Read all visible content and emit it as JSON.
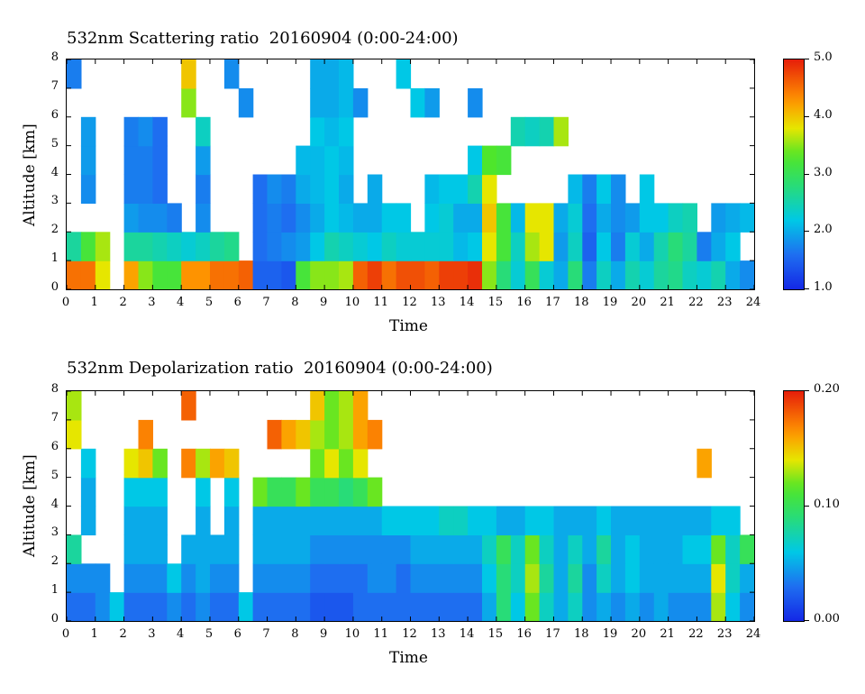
{
  "charts": [
    {
      "title": "532nm Scattering ratio  20160904 (0:00-24:00)",
      "xlabel": "Time",
      "ylabel": "Altitude [km]",
      "colorbar_ticks": [
        "5.0",
        "4.0",
        "3.0",
        "2.0",
        "1.0"
      ]
    },
    {
      "title": "532nm Depolarization ratio  20160904 (0:00-24:00)",
      "xlabel": "Time",
      "ylabel": "Altitude [km]",
      "colorbar_ticks": [
        "0.20",
        "0.10",
        "0.00"
      ]
    }
  ],
  "chart_data": [
    {
      "type": "heatmap",
      "title": "532nm Scattering ratio  20160904 (0:00-24:00)",
      "xlabel": "Time",
      "ylabel": "Altitude [km]",
      "xlim": [
        0,
        24
      ],
      "ylim": [
        0,
        8
      ],
      "x_ticks": [
        0,
        1,
        2,
        3,
        4,
        5,
        6,
        7,
        8,
        9,
        10,
        11,
        12,
        13,
        14,
        15,
        16,
        17,
        18,
        19,
        20,
        21,
        22,
        23,
        24
      ],
      "y_ticks": [
        0,
        1,
        2,
        3,
        4,
        5,
        6,
        7,
        8
      ],
      "colorbar": {
        "min": 1.0,
        "max": 5.0,
        "ticks": [
          1.0,
          2.0,
          3.0,
          4.0,
          5.0
        ],
        "colormap": "rainbow (blue-cyan-green-yellow-orange-red)"
      },
      "x": [
        0.25,
        0.75,
        1.25,
        1.75,
        2.25,
        2.75,
        3.25,
        3.75,
        4.25,
        4.75,
        5.25,
        5.75,
        6.25,
        6.75,
        7.25,
        7.75,
        8.25,
        8.75,
        9.25,
        9.75,
        10.25,
        10.75,
        11.25,
        11.75,
        12.25,
        12.75,
        13.25,
        13.75,
        14.25,
        14.75,
        15.25,
        15.75,
        16.25,
        16.75,
        17.25,
        17.75,
        18.25,
        18.75,
        19.25,
        19.75,
        20.25,
        20.75,
        21.25,
        21.75,
        22.25,
        22.75,
        23.25,
        23.75
      ],
      "y": [
        0.5,
        1.5,
        2.5,
        3.5,
        4.5,
        5.5,
        6.5,
        7.5
      ],
      "z": [
        [
          4.5,
          4.5,
          3.8,
          null,
          4.2,
          3.5,
          3.2,
          3.2,
          4.3,
          4.3,
          4.5,
          4.5,
          4.6,
          1.5,
          1.5,
          1.4,
          3.2,
          3.5,
          3.5,
          3.6,
          4.6,
          4.8,
          4.5,
          4.7,
          4.7,
          4.6,
          4.8,
          4.8,
          4.9,
          3.5,
          2.8,
          2.3,
          3.0,
          2.3,
          2.0,
          2.8,
          1.7,
          2.4,
          2.0,
          2.5,
          2.3,
          2.6,
          2.7,
          2.4,
          2.3,
          2.5,
          2.0,
          1.8
        ],
        [
          2.6,
          3.2,
          3.6,
          null,
          2.6,
          2.6,
          2.5,
          2.4,
          2.3,
          2.4,
          2.6,
          2.7,
          null,
          1.6,
          1.7,
          1.8,
          1.9,
          2.2,
          2.5,
          2.4,
          2.3,
          2.2,
          2.4,
          2.3,
          2.3,
          2.3,
          2.3,
          2.1,
          2.2,
          3.8,
          3.2,
          2.4,
          3.6,
          3.8,
          1.9,
          2.4,
          1.5,
          2.2,
          1.7,
          2.3,
          2.0,
          2.5,
          2.8,
          2.6,
          1.7,
          2.0,
          2.2,
          null
        ],
        [
          null,
          null,
          null,
          null,
          1.9,
          1.8,
          1.8,
          1.7,
          null,
          1.8,
          null,
          null,
          null,
          1.6,
          1.7,
          1.6,
          1.8,
          2.0,
          2.2,
          2.1,
          2.0,
          2.0,
          2.2,
          2.2,
          null,
          2.2,
          2.3,
          2.0,
          2.0,
          4.0,
          3.2,
          2.1,
          3.8,
          3.8,
          2.0,
          2.3,
          1.6,
          2.0,
          1.8,
          1.9,
          2.2,
          2.2,
          2.4,
          2.5,
          null,
          1.9,
          2.0,
          2.1
        ],
        [
          null,
          1.8,
          null,
          null,
          1.7,
          1.7,
          1.6,
          null,
          null,
          1.7,
          null,
          null,
          null,
          1.6,
          1.8,
          1.7,
          2.0,
          2.1,
          2.2,
          2.0,
          null,
          2.0,
          null,
          null,
          null,
          2.1,
          2.2,
          2.2,
          2.5,
          3.8,
          null,
          null,
          null,
          null,
          null,
          2.1,
          1.7,
          2.2,
          1.8,
          null,
          2.2,
          null,
          null,
          null,
          null,
          null,
          null,
          null
        ],
        [
          null,
          1.9,
          null,
          null,
          1.7,
          1.7,
          1.6,
          null,
          null,
          1.9,
          null,
          null,
          null,
          null,
          null,
          null,
          2.1,
          2.1,
          2.2,
          2.1,
          null,
          null,
          null,
          null,
          null,
          null,
          null,
          null,
          2.2,
          3.3,
          3.2,
          null,
          null,
          null,
          null,
          null,
          null,
          null,
          null,
          null,
          null,
          null,
          null,
          null,
          null,
          null,
          null,
          null
        ],
        [
          null,
          1.9,
          null,
          null,
          1.7,
          1.8,
          1.6,
          null,
          null,
          2.4,
          null,
          null,
          null,
          null,
          null,
          null,
          null,
          2.2,
          2.1,
          2.2,
          null,
          null,
          null,
          null,
          null,
          null,
          null,
          null,
          null,
          null,
          null,
          2.5,
          2.4,
          2.5,
          3.6,
          null,
          null,
          null,
          null,
          null,
          null,
          null,
          null,
          null,
          null,
          null,
          null,
          null
        ],
        [
          null,
          null,
          null,
          null,
          null,
          null,
          null,
          null,
          3.5,
          null,
          null,
          null,
          1.8,
          null,
          null,
          null,
          null,
          2.0,
          2.0,
          2.1,
          1.8,
          null,
          null,
          null,
          2.2,
          1.9,
          null,
          null,
          1.8,
          null,
          null,
          null,
          null,
          null,
          null,
          null,
          null,
          null,
          null,
          null,
          null,
          null,
          null,
          null,
          null,
          null,
          null,
          null
        ],
        [
          1.7,
          null,
          null,
          null,
          null,
          null,
          null,
          null,
          4.0,
          null,
          null,
          1.8,
          null,
          null,
          null,
          null,
          null,
          2.0,
          2.0,
          2.1,
          null,
          null,
          null,
          2.2,
          null,
          null,
          null,
          null,
          null,
          null,
          null,
          null,
          null,
          null,
          null,
          null,
          null,
          null,
          null,
          null,
          null,
          null,
          null,
          null,
          null,
          null,
          null,
          null
        ]
      ]
    },
    {
      "type": "heatmap",
      "title": "532nm Depolarization ratio  20160904 (0:00-24:00)",
      "xlabel": "Time",
      "ylabel": "Altitude [km]",
      "xlim": [
        0,
        24
      ],
      "ylim": [
        0,
        8
      ],
      "x_ticks": [
        0,
        1,
        2,
        3,
        4,
        5,
        6,
        7,
        8,
        9,
        10,
        11,
        12,
        13,
        14,
        15,
        16,
        17,
        18,
        19,
        20,
        21,
        22,
        23,
        24
      ],
      "y_ticks": [
        0,
        1,
        2,
        3,
        4,
        5,
        6,
        7,
        8
      ],
      "colorbar": {
        "min": 0.0,
        "max": 0.2,
        "ticks": [
          0.0,
          0.1,
          0.2
        ],
        "colormap": "rainbow (blue-cyan-green-yellow-orange-red)"
      },
      "x": [
        0.25,
        0.75,
        1.25,
        1.75,
        2.25,
        2.75,
        3.25,
        3.75,
        4.25,
        4.75,
        5.25,
        5.75,
        6.25,
        6.75,
        7.25,
        7.75,
        8.25,
        8.75,
        9.25,
        9.75,
        10.25,
        10.75,
        11.25,
        11.75,
        12.25,
        12.75,
        13.25,
        13.75,
        14.25,
        14.75,
        15.25,
        15.75,
        16.25,
        16.75,
        17.25,
        17.75,
        18.25,
        18.75,
        19.25,
        19.75,
        20.25,
        20.75,
        21.25,
        21.75,
        22.25,
        22.75,
        23.25,
        23.75
      ],
      "y": [
        0.5,
        1.5,
        2.5,
        3.5,
        4.5,
        5.5,
        6.5,
        7.5
      ],
      "z": [
        [
          0.03,
          0.03,
          0.04,
          0.06,
          0.03,
          0.03,
          0.03,
          0.04,
          0.03,
          0.04,
          0.03,
          0.03,
          0.06,
          0.03,
          0.03,
          0.03,
          0.03,
          0.02,
          0.02,
          0.02,
          0.03,
          0.03,
          0.03,
          0.03,
          0.03,
          0.03,
          0.03,
          0.03,
          0.03,
          0.05,
          0.09,
          0.06,
          0.12,
          0.07,
          0.05,
          0.07,
          0.04,
          0.05,
          0.04,
          0.05,
          0.04,
          0.05,
          0.04,
          0.04,
          0.04,
          0.13,
          0.06,
          0.04
        ],
        [
          0.04,
          0.04,
          0.04,
          null,
          0.04,
          0.04,
          0.04,
          0.06,
          0.04,
          0.05,
          0.04,
          0.04,
          null,
          0.04,
          0.04,
          0.04,
          0.04,
          0.03,
          0.03,
          0.03,
          0.03,
          0.04,
          0.04,
          0.03,
          0.04,
          0.04,
          0.04,
          0.04,
          0.04,
          0.06,
          0.09,
          0.07,
          0.13,
          0.08,
          0.05,
          0.08,
          0.04,
          0.07,
          0.05,
          0.06,
          0.05,
          0.05,
          0.05,
          0.05,
          0.05,
          0.14,
          0.07,
          0.05
        ],
        [
          0.08,
          null,
          null,
          null,
          0.05,
          0.05,
          0.05,
          null,
          0.05,
          0.05,
          0.05,
          0.05,
          null,
          0.05,
          0.05,
          0.05,
          0.05,
          0.04,
          0.04,
          0.04,
          0.04,
          0.04,
          0.04,
          0.04,
          0.05,
          0.05,
          0.05,
          0.05,
          0.05,
          0.07,
          0.1,
          0.07,
          0.12,
          0.07,
          0.05,
          0.07,
          0.05,
          0.08,
          0.05,
          0.06,
          0.05,
          0.05,
          0.05,
          0.06,
          0.06,
          0.12,
          0.07,
          0.1
        ],
        [
          null,
          0.05,
          null,
          null,
          0.05,
          0.05,
          0.05,
          null,
          null,
          0.05,
          null,
          0.05,
          null,
          0.05,
          0.05,
          0.05,
          0.05,
          0.05,
          0.05,
          0.05,
          0.05,
          0.05,
          0.06,
          0.06,
          0.06,
          0.06,
          0.07,
          0.07,
          0.06,
          0.06,
          0.05,
          0.05,
          0.06,
          0.06,
          0.05,
          0.05,
          0.05,
          0.06,
          0.05,
          0.05,
          0.05,
          0.05,
          0.05,
          0.05,
          0.05,
          0.06,
          0.06,
          null
        ],
        [
          null,
          0.05,
          null,
          null,
          0.06,
          0.06,
          0.06,
          null,
          null,
          0.06,
          null,
          0.06,
          null,
          0.12,
          0.1,
          0.1,
          0.12,
          0.1,
          0.1,
          0.09,
          0.1,
          0.12,
          null,
          null,
          null,
          null,
          null,
          null,
          null,
          null,
          null,
          null,
          null,
          null,
          null,
          null,
          null,
          null,
          null,
          null,
          null,
          null,
          null,
          null,
          null,
          null,
          null,
          null
        ],
        [
          null,
          0.06,
          null,
          null,
          0.14,
          0.15,
          0.12,
          null,
          0.17,
          0.13,
          0.16,
          0.15,
          null,
          null,
          null,
          null,
          null,
          0.12,
          0.14,
          0.12,
          0.14,
          null,
          null,
          null,
          null,
          null,
          null,
          null,
          null,
          null,
          null,
          null,
          null,
          null,
          null,
          null,
          null,
          null,
          null,
          null,
          null,
          null,
          null,
          null,
          0.16,
          null,
          null,
          null
        ],
        [
          0.14,
          null,
          null,
          null,
          null,
          0.17,
          null,
          null,
          null,
          null,
          null,
          null,
          null,
          null,
          0.18,
          0.16,
          0.15,
          0.13,
          0.12,
          0.13,
          0.16,
          0.17,
          null,
          null,
          null,
          null,
          null,
          null,
          null,
          null,
          null,
          null,
          null,
          null,
          null,
          null,
          null,
          null,
          null,
          null,
          null,
          null,
          null,
          null,
          null,
          null,
          null,
          null
        ],
        [
          0.13,
          null,
          null,
          null,
          null,
          null,
          null,
          null,
          0.18,
          null,
          null,
          null,
          null,
          null,
          null,
          null,
          null,
          0.15,
          0.12,
          0.13,
          0.16,
          null,
          null,
          null,
          null,
          null,
          null,
          null,
          null,
          null,
          null,
          null,
          null,
          null,
          null,
          null,
          null,
          null,
          null,
          null,
          null,
          null,
          null,
          null,
          null,
          null,
          null,
          null
        ]
      ]
    }
  ]
}
